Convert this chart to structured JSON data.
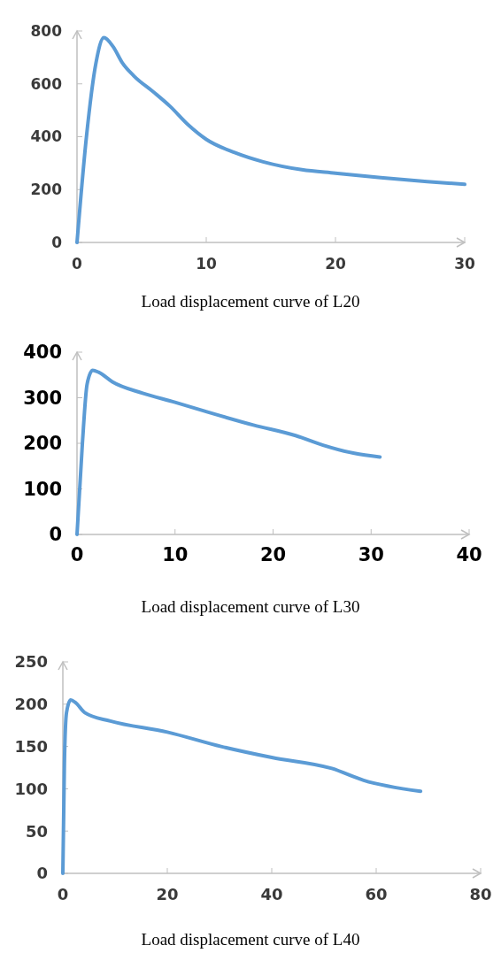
{
  "chart_data": [
    {
      "type": "line",
      "annotations": [
        "Load displacement curve of L20"
      ],
      "xlim": [
        0,
        30
      ],
      "xticks": [
        0,
        10,
        20,
        30
      ],
      "ylim": [
        0,
        800
      ],
      "yticks": [
        0,
        200,
        400,
        600,
        800
      ],
      "grid": false,
      "marker": "none",
      "line_style": "solid",
      "series": [
        {
          "color": "#5b9bd5",
          "x": [
            0,
            0.73,
            1.47,
            2.08,
            2.8,
            3.5,
            4.4,
            5.9,
            7.2,
            8.6,
            10,
            12.2,
            14.4,
            17.4,
            20,
            23.5,
            27.1,
            30
          ],
          "values": [
            0,
            400,
            680,
            775,
            740,
            680,
            630,
            570,
            515,
            445,
            390,
            340,
            305,
            275,
            262,
            245,
            230,
            220
          ]
        }
      ]
    },
    {
      "type": "line",
      "annotations": [
        "Load displacement curve of L30"
      ],
      "xlim": [
        0,
        40
      ],
      "xticks": [
        0,
        10,
        20,
        30,
        40
      ],
      "ylim": [
        0,
        400
      ],
      "yticks": [
        0,
        100,
        200,
        300,
        400
      ],
      "grid": false,
      "marker": "none",
      "line_style": "solid",
      "series": [
        {
          "color": "#5b9bd5",
          "x": [
            0,
            0.55,
            1.03,
            1.6,
            2.2,
            3.6,
            6.7,
            10,
            13.1,
            18,
            22.3,
            25.1,
            28.3,
            30.9
          ],
          "values": [
            0,
            200,
            330,
            360,
            356,
            335,
            310,
            290,
            270,
            240,
            217,
            196,
            178,
            170
          ]
        }
      ]
    },
    {
      "type": "line",
      "annotations": [
        "Load displacement curve of L40"
      ],
      "xlim": [
        0,
        80
      ],
      "xticks": [
        0,
        20,
        40,
        60,
        80
      ],
      "ylim": [
        0,
        250
      ],
      "yticks": [
        0,
        50,
        100,
        150,
        200,
        250
      ],
      "grid": false,
      "marker": "none",
      "line_style": "solid",
      "series": [
        {
          "color": "#5b9bd5",
          "x": [
            0,
            0.3,
            0.7,
            1.5,
            2.4,
            4.2,
            9.1,
            20,
            30.3,
            40,
            51.5,
            57.6,
            68.5
          ],
          "values": [
            0,
            130,
            190,
            205,
            202,
            190,
            180,
            167,
            150,
            137,
            124,
            110,
            97
          ]
        }
      ]
    }
  ]
}
